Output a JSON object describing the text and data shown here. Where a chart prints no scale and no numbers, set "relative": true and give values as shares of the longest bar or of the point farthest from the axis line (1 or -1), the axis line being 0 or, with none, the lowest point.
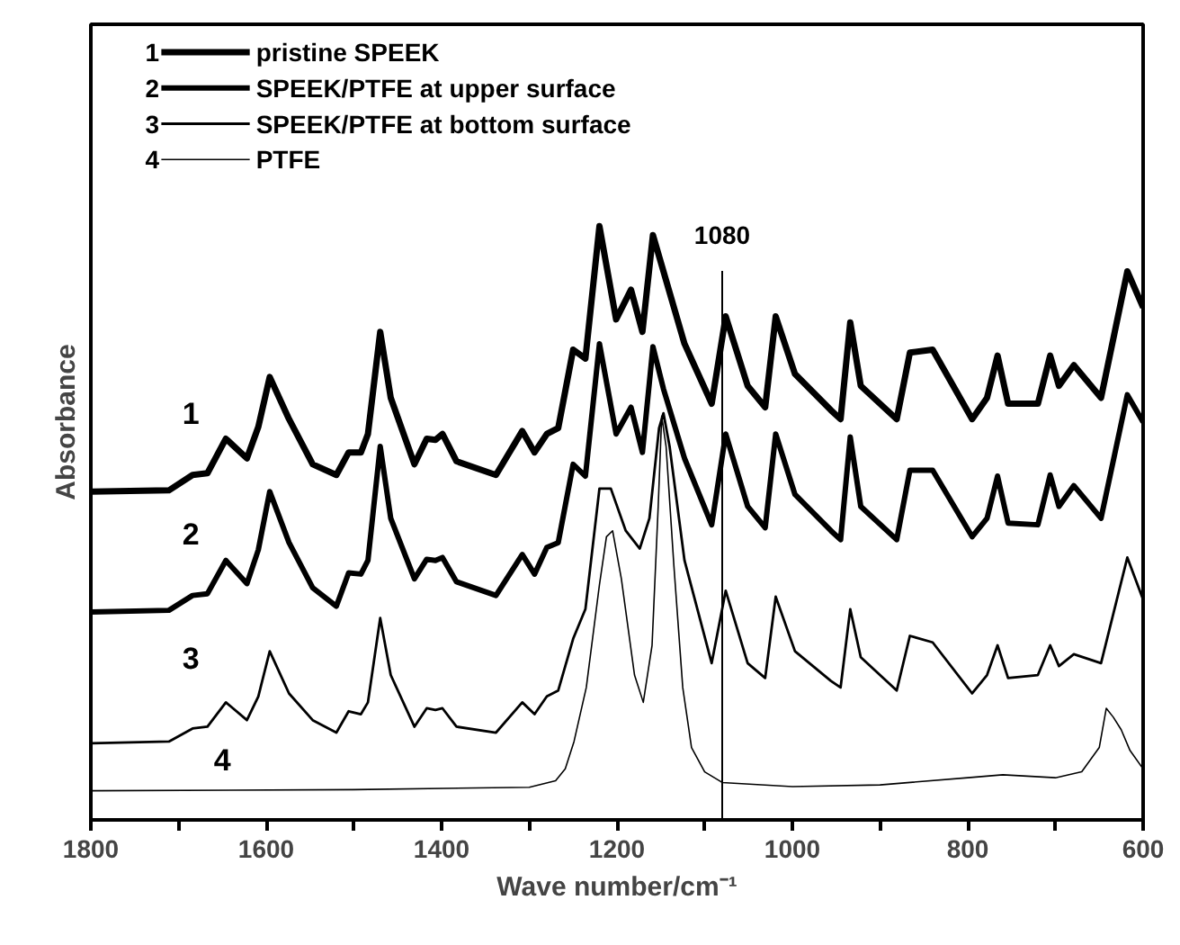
{
  "chart_data": {
    "type": "line",
    "relative": true,
    "xlabel": "Wave number/cm⁻¹",
    "ylabel": "Absorbance",
    "legend": "top left",
    "line_style": "solid",
    "grid": false,
    "xlim": [
      1800,
      600
    ],
    "xticks": [
      1800,
      {
        "value": 1700,
        "label": null
      },
      1600,
      {
        "value": 1500,
        "label": null
      },
      1400,
      {
        "value": 1300,
        "label": null
      },
      1200,
      {
        "value": 1100,
        "label": null
      },
      1000,
      {
        "value": 900,
        "label": null
      },
      800,
      {
        "value": 700,
        "label": null
      },
      600
    ],
    "ref_lines": [
      {
        "axis": "x",
        "value": 1080,
        "label": "1080",
        "color": "#000000"
      }
    ],
    "annotations": [
      "1",
      "2",
      "3",
      "4"
    ],
    "series": [
      {
        "name": "pristine SPEEK",
        "color": "#000000",
        "x": [
          1800,
          1711,
          1684,
          1667,
          1646,
          1622,
          1609,
          1596,
          1574,
          1547,
          1520,
          1506,
          1492,
          1484,
          1470,
          1458,
          1431,
          1417,
          1407,
          1399,
          1383,
          1338,
          1308,
          1294,
          1280,
          1267,
          1250,
          1236,
          1220,
          1201,
          1184,
          1171,
          1159,
          1147,
          1123,
          1092,
          1076,
          1051,
          1031,
          1019,
          997,
          956,
          945,
          934,
          922,
          881,
          866,
          840,
          795,
          778,
          766,
          754,
          720,
          706,
          696,
          679,
          648,
          618,
          600
        ],
        "values": [
          0.553,
          0.555,
          0.581,
          0.584,
          0.642,
          0.609,
          0.662,
          0.746,
          0.675,
          0.599,
          0.581,
          0.619,
          0.619,
          0.65,
          0.822,
          0.711,
          0.599,
          0.642,
          0.64,
          0.65,
          0.604,
          0.581,
          0.655,
          0.619,
          0.65,
          0.66,
          0.792,
          0.777,
          1.0,
          0.843,
          0.893,
          0.822,
          0.985,
          0.924,
          0.802,
          0.701,
          0.848,
          0.731,
          0.695,
          0.848,
          0.751,
          0.69,
          0.675,
          0.838,
          0.731,
          0.675,
          0.787,
          0.792,
          0.675,
          0.711,
          0.782,
          0.701,
          0.701,
          0.782,
          0.731,
          0.766,
          0.711,
          0.924,
          0.863
        ]
      },
      {
        "name": "SPEEK/PTFE at upper surface",
        "color": "#000000",
        "x": [
          1800,
          1711,
          1684,
          1667,
          1646,
          1622,
          1609,
          1596,
          1574,
          1547,
          1520,
          1506,
          1492,
          1484,
          1470,
          1458,
          1431,
          1417,
          1407,
          1399,
          1383,
          1338,
          1308,
          1294,
          1280,
          1267,
          1250,
          1236,
          1220,
          1201,
          1184,
          1171,
          1159,
          1147,
          1123,
          1092,
          1076,
          1051,
          1031,
          1019,
          997,
          956,
          945,
          934,
          922,
          881,
          866,
          840,
          795,
          778,
          766,
          754,
          720,
          706,
          696,
          679,
          648,
          618,
          600
        ],
        "values": [
          0.35,
          0.353,
          0.378,
          0.381,
          0.437,
          0.398,
          0.455,
          0.553,
          0.467,
          0.391,
          0.36,
          0.416,
          0.414,
          0.437,
          0.629,
          0.508,
          0.406,
          0.439,
          0.437,
          0.442,
          0.401,
          0.378,
          0.447,
          0.414,
          0.459,
          0.467,
          0.599,
          0.579,
          0.802,
          0.65,
          0.695,
          0.619,
          0.797,
          0.726,
          0.609,
          0.497,
          0.65,
          0.528,
          0.492,
          0.65,
          0.548,
          0.487,
          0.472,
          0.645,
          0.528,
          0.472,
          0.589,
          0.589,
          0.477,
          0.508,
          0.579,
          0.5,
          0.497,
          0.581,
          0.528,
          0.563,
          0.508,
          0.716,
          0.67
        ]
      },
      {
        "name": "SPEEK/PTFE at bottom surface",
        "color": "#000000",
        "x": [
          1800,
          1711,
          1684,
          1667,
          1646,
          1622,
          1609,
          1596,
          1574,
          1547,
          1520,
          1506,
          1492,
          1484,
          1470,
          1458,
          1431,
          1417,
          1407,
          1399,
          1383,
          1338,
          1308,
          1294,
          1280,
          1267,
          1250,
          1236,
          1220,
          1207,
          1190,
          1174,
          1163,
          1152,
          1147,
          1140,
          1123,
          1092,
          1076,
          1051,
          1031,
          1019,
          997,
          956,
          945,
          934,
          922,
          881,
          866,
          840,
          795,
          778,
          766,
          754,
          720,
          706,
          696,
          679,
          648,
          618,
          600
        ],
        "values": [
          0.129,
          0.132,
          0.154,
          0.157,
          0.198,
          0.168,
          0.208,
          0.284,
          0.213,
          0.168,
          0.147,
          0.183,
          0.178,
          0.198,
          0.34,
          0.244,
          0.157,
          0.188,
          0.185,
          0.188,
          0.157,
          0.147,
          0.198,
          0.178,
          0.208,
          0.218,
          0.305,
          0.355,
          0.558,
          0.558,
          0.487,
          0.457,
          0.508,
          0.66,
          0.685,
          0.629,
          0.437,
          0.264,
          0.386,
          0.264,
          0.239,
          0.376,
          0.284,
          0.234,
          0.223,
          0.355,
          0.274,
          0.218,
          0.31,
          0.299,
          0.213,
          0.244,
          0.294,
          0.239,
          0.244,
          0.294,
          0.259,
          0.279,
          0.264,
          0.442,
          0.371
        ]
      },
      {
        "name": "PTFE",
        "color": "#000000",
        "x": [
          1800,
          1500,
          1300,
          1270,
          1259,
          1249,
          1235,
          1220,
          1212,
          1205,
          1195,
          1180,
          1170,
          1160,
          1153,
          1149,
          1144,
          1135,
          1125,
          1115,
          1100,
          1080,
          1000,
          900,
          800,
          760,
          700,
          670,
          650,
          642,
          634,
          625,
          615,
          600
        ],
        "values": [
          0.049,
          0.051,
          0.055,
          0.066,
          0.086,
          0.132,
          0.223,
          0.396,
          0.477,
          0.487,
          0.406,
          0.244,
          0.198,
          0.294,
          0.528,
          0.68,
          0.629,
          0.426,
          0.223,
          0.122,
          0.081,
          0.063,
          0.056,
          0.059,
          0.071,
          0.076,
          0.071,
          0.081,
          0.122,
          0.188,
          0.173,
          0.152,
          0.117,
          0.086
        ]
      }
    ]
  }
}
